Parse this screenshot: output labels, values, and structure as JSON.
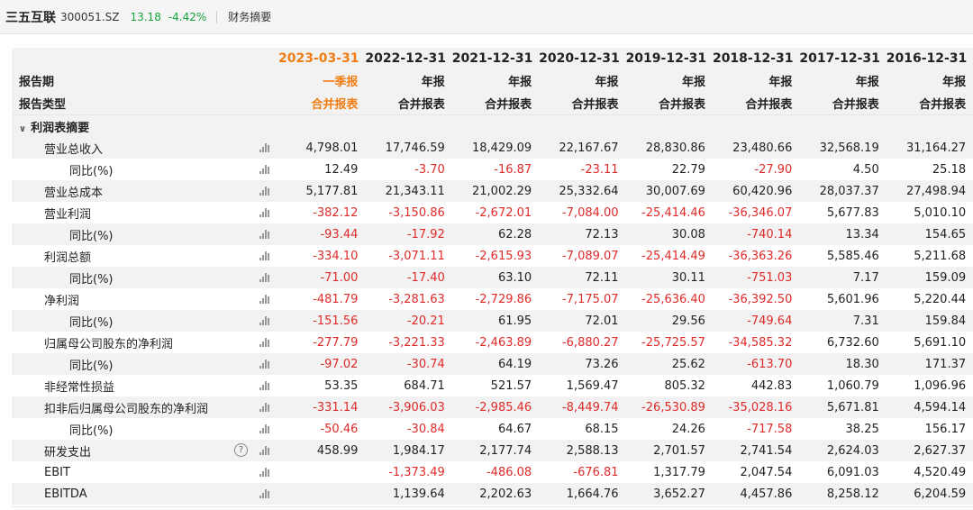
{
  "header": {
    "name": "三五互联",
    "code": "300051.SZ",
    "price": "13.18",
    "change": "-4.42%",
    "title": "财务摘要"
  },
  "columns": [
    {
      "date": "2023-03-31",
      "report": "一季报",
      "type": "合并报表"
    },
    {
      "date": "2022-12-31",
      "report": "年报",
      "type": "合并报表"
    },
    {
      "date": "2021-12-31",
      "report": "年报",
      "type": "合并报表"
    },
    {
      "date": "2020-12-31",
      "report": "年报",
      "type": "合并报表"
    },
    {
      "date": "2019-12-31",
      "report": "年报",
      "type": "合并报表"
    },
    {
      "date": "2018-12-31",
      "report": "年报",
      "type": "合并报表"
    },
    {
      "date": "2017-12-31",
      "report": "年报",
      "type": "合并报表"
    },
    {
      "date": "2016-12-31",
      "report": "年报",
      "type": "合并报表"
    }
  ],
  "row_labels": {
    "period": "报告期",
    "type": "报告类型"
  },
  "section": "利润表摘要",
  "rows": [
    {
      "label": "营业总收入",
      "indent": 1,
      "values": [
        "4,798.01",
        "17,746.59",
        "18,429.09",
        "22,167.67",
        "28,830.86",
        "23,480.66",
        "32,568.19",
        "31,164.27"
      ]
    },
    {
      "label": "同比(%)",
      "indent": 2,
      "values": [
        "12.49",
        "-3.70",
        "-16.87",
        "-23.11",
        "22.79",
        "-27.90",
        "4.50",
        "25.18"
      ]
    },
    {
      "label": "营业总成本",
      "indent": 1,
      "values": [
        "5,177.81",
        "21,343.11",
        "21,002.29",
        "25,332.64",
        "30,007.69",
        "60,420.96",
        "28,037.37",
        "27,498.94"
      ]
    },
    {
      "label": "营业利润",
      "indent": 1,
      "values": [
        "-382.12",
        "-3,150.86",
        "-2,672.01",
        "-7,084.00",
        "-25,414.46",
        "-36,346.07",
        "5,677.83",
        "5,010.10"
      ]
    },
    {
      "label": "同比(%)",
      "indent": 2,
      "values": [
        "-93.44",
        "-17.92",
        "62.28",
        "72.13",
        "30.08",
        "-740.14",
        "13.34",
        "154.65"
      ]
    },
    {
      "label": "利润总额",
      "indent": 1,
      "values": [
        "-334.10",
        "-3,071.11",
        "-2,615.93",
        "-7,089.07",
        "-25,414.49",
        "-36,363.26",
        "5,585.46",
        "5,211.68"
      ]
    },
    {
      "label": "同比(%)",
      "indent": 2,
      "values": [
        "-71.00",
        "-17.40",
        "63.10",
        "72.11",
        "30.11",
        "-751.03",
        "7.17",
        "159.09"
      ]
    },
    {
      "label": "净利润",
      "indent": 1,
      "values": [
        "-481.79",
        "-3,281.63",
        "-2,729.86",
        "-7,175.07",
        "-25,636.40",
        "-36,392.50",
        "5,601.96",
        "5,220.44"
      ]
    },
    {
      "label": "同比(%)",
      "indent": 2,
      "values": [
        "-151.56",
        "-20.21",
        "61.95",
        "72.01",
        "29.56",
        "-749.64",
        "7.31",
        "159.84"
      ]
    },
    {
      "label": "归属母公司股东的净利润",
      "indent": 1,
      "values": [
        "-277.79",
        "-3,221.33",
        "-2,463.89",
        "-6,880.27",
        "-25,725.57",
        "-34,585.32",
        "6,732.60",
        "5,691.10"
      ]
    },
    {
      "label": "同比(%)",
      "indent": 2,
      "values": [
        "-97.02",
        "-30.74",
        "64.19",
        "73.26",
        "25.62",
        "-613.70",
        "18.30",
        "171.37"
      ]
    },
    {
      "label": "非经常性损益",
      "indent": 1,
      "values": [
        "53.35",
        "684.71",
        "521.57",
        "1,569.47",
        "805.32",
        "442.83",
        "1,060.79",
        "1,096.96"
      ]
    },
    {
      "label": "扣非后归属母公司股东的净利润",
      "indent": 1,
      "values": [
        "-331.14",
        "-3,906.03",
        "-2,985.46",
        "-8,449.74",
        "-26,530.89",
        "-35,028.16",
        "5,671.81",
        "4,594.14"
      ]
    },
    {
      "label": "同比(%)",
      "indent": 2,
      "values": [
        "-50.46",
        "-30.84",
        "64.67",
        "68.15",
        "24.26",
        "-717.58",
        "38.25",
        "156.17"
      ]
    },
    {
      "label": "研发支出",
      "indent": 1,
      "help": true,
      "values": [
        "458.99",
        "1,984.17",
        "2,177.74",
        "2,588.13",
        "2,701.57",
        "2,741.54",
        "2,624.03",
        "2,627.37"
      ]
    },
    {
      "label": "EBIT",
      "indent": 1,
      "values": [
        "",
        "-1,373.49",
        "-486.08",
        "-676.81",
        "1,317.79",
        "2,047.54",
        "6,091.03",
        "4,520.49"
      ]
    },
    {
      "label": "EBITDA",
      "indent": 1,
      "values": [
        "",
        "1,139.64",
        "2,202.63",
        "1,664.76",
        "3,652.27",
        "4,457.86",
        "8,258.12",
        "6,204.59"
      ]
    }
  ],
  "colors": {
    "negative": "#e02a2a",
    "positive": "#222222",
    "highlight": "#f07d14",
    "down": "#14a33c"
  },
  "icons": {
    "chart": "bar-chart-icon",
    "help": "question-circle-icon",
    "collapse": "chevron-down-icon"
  }
}
